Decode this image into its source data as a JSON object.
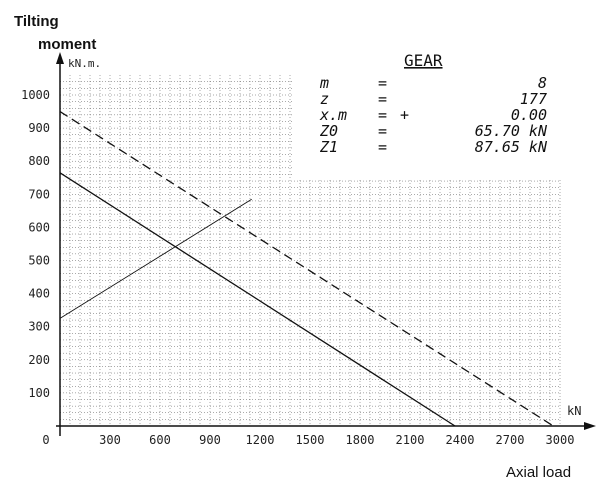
{
  "chart_data": {
    "type": "line",
    "ylabel_line1": "Tilting",
    "ylabel_line2": "moment",
    "yunit": "kN.m.",
    "xlabel": "Axial load",
    "xunit": "kN",
    "xlim": [
      0,
      3000
    ],
    "ylim": [
      0,
      1000
    ],
    "x_ticks": [
      0,
      300,
      600,
      900,
      1200,
      1500,
      1800,
      2100,
      2400,
      2700,
      3000
    ],
    "y_ticks": [
      100,
      200,
      300,
      400,
      500,
      600,
      700,
      800,
      900,
      1000
    ],
    "grid": true,
    "series": [
      {
        "style": "dashed",
        "points": [
          [
            0,
            950
          ],
          [
            2960,
            0
          ]
        ]
      },
      {
        "style": "solid",
        "points": [
          [
            0,
            765
          ],
          [
            2370,
            0
          ]
        ]
      },
      {
        "style": "solid-thin",
        "points": [
          [
            0,
            325
          ],
          [
            1150,
            685
          ]
        ]
      }
    ]
  },
  "gear": {
    "title": "GEAR",
    "rows": [
      {
        "label": "m",
        "eq": "=",
        "sign": "",
        "value": "8"
      },
      {
        "label": "z",
        "eq": "=",
        "sign": "",
        "value": "177"
      },
      {
        "label": "x.m",
        "eq": "=",
        "sign": "+",
        "value": "0.00"
      },
      {
        "label": "Z0",
        "eq": "=",
        "sign": "",
        "value": "65.70 kN"
      },
      {
        "label": "Z1",
        "eq": "=",
        "sign": "",
        "value": "87.65 kN"
      }
    ]
  }
}
